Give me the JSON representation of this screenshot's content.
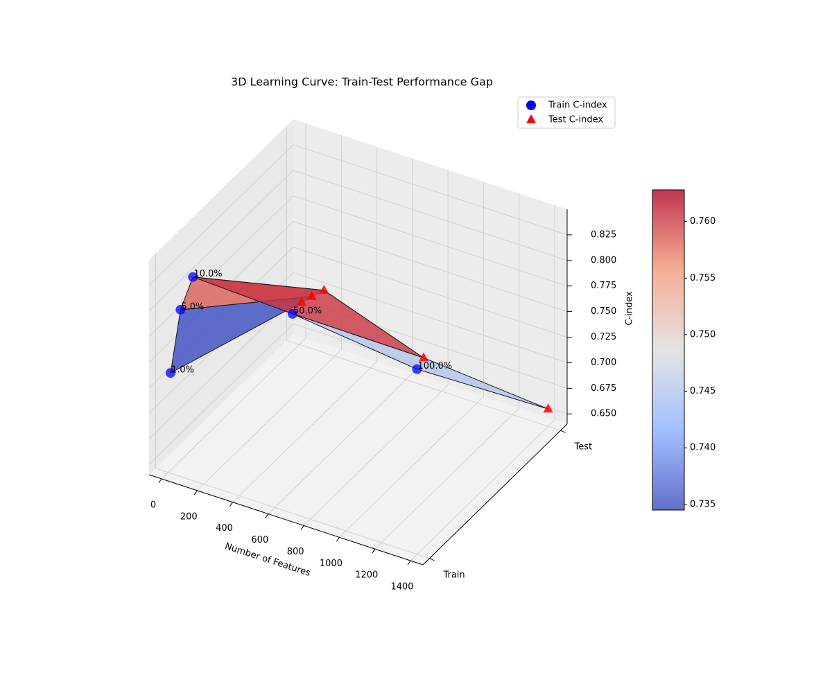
{
  "chart_data": {
    "type": "surface3d",
    "title": "3D Learning Curve: Train-Test Performance Gap",
    "xlabel": "Number of Features",
    "zlabel": "C-index",
    "x": [
      14,
      70,
      140,
      700,
      1400
    ],
    "point_labels": [
      "1.0%",
      "5.0%",
      "10.0%",
      "50.0%",
      "100.0%"
    ],
    "series": [
      {
        "name": "Train C-index",
        "color": "#0000ff",
        "marker": "circle",
        "y": 0,
        "values": [
          0.738,
          0.803,
          0.839,
          0.835,
          0.821
        ]
      },
      {
        "name": "Test C-index",
        "color": "#ff0000",
        "marker": "triangle",
        "y": 1,
        "values": [
          0.682,
          0.691,
          0.701,
          0.667,
          0.657
        ]
      }
    ],
    "xlim": [
      -70,
      1470
    ],
    "ylim": [
      -0.05,
      1.05
    ],
    "zlim": [
      0.64,
      0.85
    ],
    "xticks": [
      0,
      200,
      400,
      600,
      800,
      1000,
      1200,
      1400
    ],
    "yticks": [
      {
        "value": 0,
        "label": "Train"
      },
      {
        "value": 1,
        "label": "Test"
      }
    ],
    "zticks": [
      {
        "value": 0.65,
        "label": "0.650"
      },
      0.675,
      {
        "value": 0.7,
        "label": "0.700"
      },
      0.725,
      {
        "value": 0.75,
        "label": "0.750"
      },
      0.775,
      {
        "value": 0.8,
        "label": "0.800"
      },
      0.825
    ],
    "colormap": [
      "#3b4cc0",
      "#8db0fe",
      "#dddddd",
      "#f49a7b",
      "#b40426"
    ],
    "clim": [
      0.7345,
      0.7628
    ],
    "colorbar_ticks": [
      0.735,
      {
        "value": 0.74,
        "label": "0.740"
      },
      0.745,
      {
        "value": 0.75,
        "label": "0.750"
      },
      0.755,
      {
        "value": 0.76,
        "label": "0.760"
      }
    ],
    "grid": true,
    "legend": "upper right"
  }
}
